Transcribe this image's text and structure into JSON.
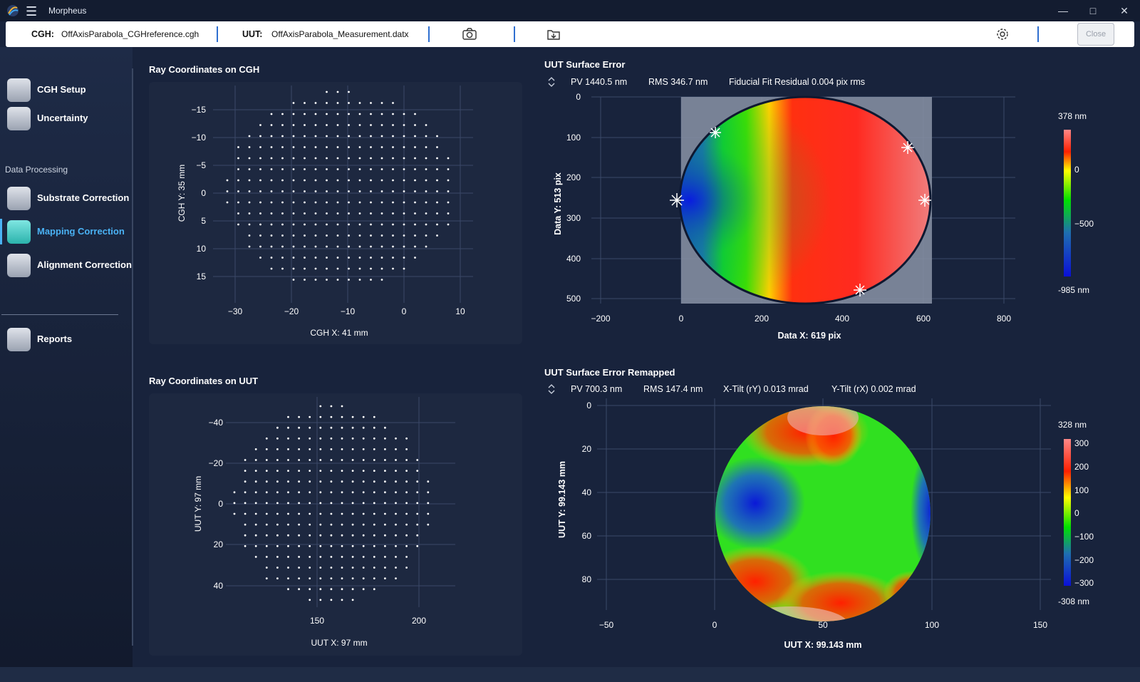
{
  "app": {
    "title": "Morpheus"
  },
  "toolbar": {
    "cgh_label": "CGH:",
    "cgh_file": "OffAxisParabola_CGHreference.cgh",
    "uut_label": "UUT:",
    "uut_file": "OffAxisParabola_Measurement.datx",
    "close_label": "Close"
  },
  "sidebar": {
    "cgh_setup": "CGH Setup",
    "uncertainty": "Uncertainty",
    "section_label": "Data Processing",
    "substrate": "Substrate Correction",
    "mapping": "Mapping Correction",
    "alignment": "Alignment Correction",
    "reports": "Reports"
  },
  "cgh_plot": {
    "title": "Ray Coordinates on CGH",
    "xlabel": "CGH X: 41 mm",
    "ylabel": "CGH Y: 35 mm",
    "xticks": [
      "−30",
      "−20",
      "−10",
      "0",
      "10"
    ],
    "yticks": [
      "−15",
      "−10",
      "−5",
      "0",
      "5",
      "10",
      "15"
    ]
  },
  "uut_plot": {
    "title": "Ray Coordinates on UUT",
    "xlabel": "UUT X: 97 mm",
    "ylabel": "UUT Y: 97 mm",
    "xticks": [
      "150",
      "200"
    ],
    "yticks": [
      "−40",
      "−20",
      "0",
      "20",
      "40"
    ]
  },
  "surface_error": {
    "title": "UUT Surface Error",
    "pv": "PV 1440.5 nm",
    "rms": "RMS 346.7 nm",
    "fiducial": "Fiducial Fit Residual 0.004 pix rms",
    "xlabel": "Data X: 619 pix",
    "ylabel": "Data Y: 513 pix",
    "xticks": [
      "−200",
      "0",
      "200",
      "400",
      "600",
      "800"
    ],
    "yticks": [
      "0",
      "100",
      "200",
      "300",
      "400",
      "500"
    ],
    "colorbar_max": "378 nm",
    "colorbar_min": "-985 nm",
    "colorbar_ticks": [
      "0",
      "−500"
    ]
  },
  "surface_remapped": {
    "title": "UUT Surface Error Remapped",
    "pv": "PV 700.3 nm",
    "rms": "RMS 147.4 nm",
    "xtilt": "X-Tilt (rY) 0.013 mrad",
    "ytilt": "Y-Tilt (rX) 0.002 mrad",
    "xlabel": "UUT X: 99.143 mm",
    "ylabel": "UUT Y: 99.143 mm",
    "xticks": [
      "−50",
      "0",
      "50",
      "100",
      "150"
    ],
    "yticks": [
      "0",
      "20",
      "40",
      "60",
      "80"
    ],
    "colorbar_max": "328 nm",
    "colorbar_min": "-308 nm",
    "colorbar_ticks": [
      "300",
      "200",
      "100",
      "0",
      "−100",
      "−200",
      "−300"
    ]
  }
}
